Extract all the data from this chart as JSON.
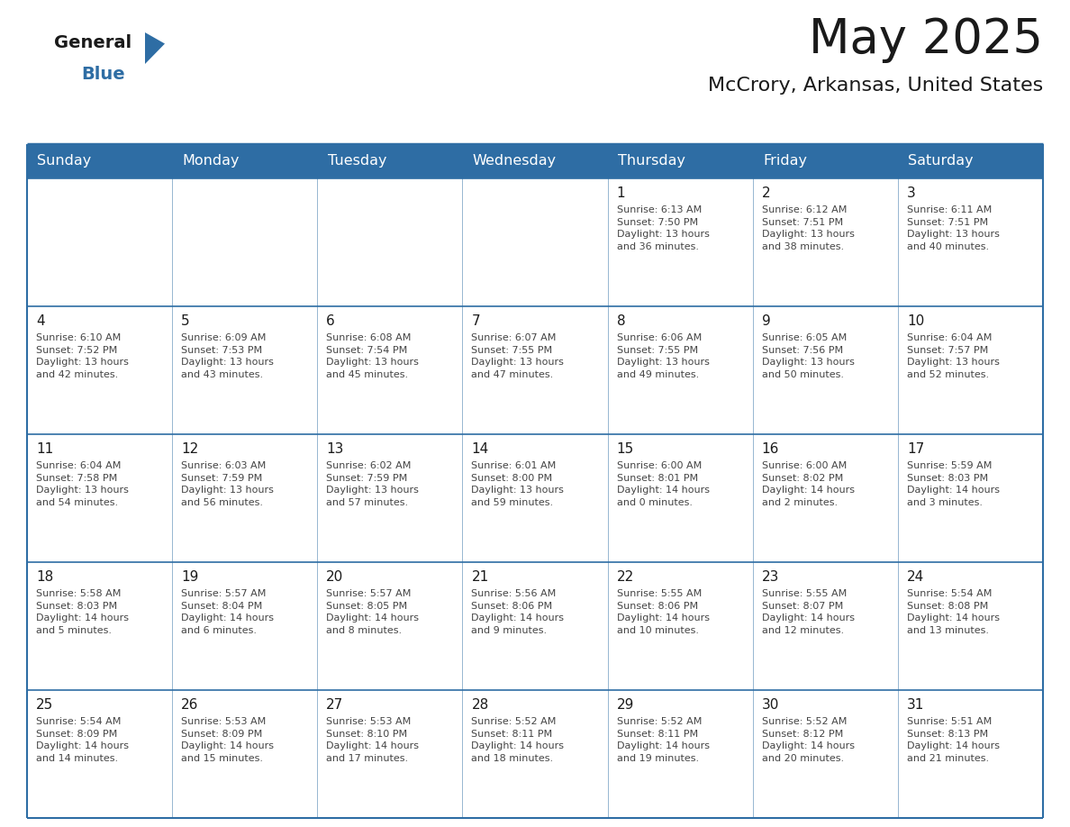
{
  "title": "May 2025",
  "subtitle": "McCrory, Arkansas, United States",
  "header_bg_color": "#2E6DA4",
  "header_text_color": "#FFFFFF",
  "day_names": [
    "Sunday",
    "Monday",
    "Tuesday",
    "Wednesday",
    "Thursday",
    "Friday",
    "Saturday"
  ],
  "title_color": "#1a1a1a",
  "subtitle_color": "#1a1a1a",
  "cell_text_color": "#444444",
  "day_num_color": "#1a1a1a",
  "line_color": "#2E6DA4",
  "logo_black_color": "#1a1a1a",
  "logo_blue_color": "#2E6DA4",
  "weeks": [
    [
      {
        "day": "",
        "text": ""
      },
      {
        "day": "",
        "text": ""
      },
      {
        "day": "",
        "text": ""
      },
      {
        "day": "",
        "text": ""
      },
      {
        "day": "1",
        "text": "Sunrise: 6:13 AM\nSunset: 7:50 PM\nDaylight: 13 hours\nand 36 minutes."
      },
      {
        "day": "2",
        "text": "Sunrise: 6:12 AM\nSunset: 7:51 PM\nDaylight: 13 hours\nand 38 minutes."
      },
      {
        "day": "3",
        "text": "Sunrise: 6:11 AM\nSunset: 7:51 PM\nDaylight: 13 hours\nand 40 minutes."
      }
    ],
    [
      {
        "day": "4",
        "text": "Sunrise: 6:10 AM\nSunset: 7:52 PM\nDaylight: 13 hours\nand 42 minutes."
      },
      {
        "day": "5",
        "text": "Sunrise: 6:09 AM\nSunset: 7:53 PM\nDaylight: 13 hours\nand 43 minutes."
      },
      {
        "day": "6",
        "text": "Sunrise: 6:08 AM\nSunset: 7:54 PM\nDaylight: 13 hours\nand 45 minutes."
      },
      {
        "day": "7",
        "text": "Sunrise: 6:07 AM\nSunset: 7:55 PM\nDaylight: 13 hours\nand 47 minutes."
      },
      {
        "day": "8",
        "text": "Sunrise: 6:06 AM\nSunset: 7:55 PM\nDaylight: 13 hours\nand 49 minutes."
      },
      {
        "day": "9",
        "text": "Sunrise: 6:05 AM\nSunset: 7:56 PM\nDaylight: 13 hours\nand 50 minutes."
      },
      {
        "day": "10",
        "text": "Sunrise: 6:04 AM\nSunset: 7:57 PM\nDaylight: 13 hours\nand 52 minutes."
      }
    ],
    [
      {
        "day": "11",
        "text": "Sunrise: 6:04 AM\nSunset: 7:58 PM\nDaylight: 13 hours\nand 54 minutes."
      },
      {
        "day": "12",
        "text": "Sunrise: 6:03 AM\nSunset: 7:59 PM\nDaylight: 13 hours\nand 56 minutes."
      },
      {
        "day": "13",
        "text": "Sunrise: 6:02 AM\nSunset: 7:59 PM\nDaylight: 13 hours\nand 57 minutes."
      },
      {
        "day": "14",
        "text": "Sunrise: 6:01 AM\nSunset: 8:00 PM\nDaylight: 13 hours\nand 59 minutes."
      },
      {
        "day": "15",
        "text": "Sunrise: 6:00 AM\nSunset: 8:01 PM\nDaylight: 14 hours\nand 0 minutes."
      },
      {
        "day": "16",
        "text": "Sunrise: 6:00 AM\nSunset: 8:02 PM\nDaylight: 14 hours\nand 2 minutes."
      },
      {
        "day": "17",
        "text": "Sunrise: 5:59 AM\nSunset: 8:03 PM\nDaylight: 14 hours\nand 3 minutes."
      }
    ],
    [
      {
        "day": "18",
        "text": "Sunrise: 5:58 AM\nSunset: 8:03 PM\nDaylight: 14 hours\nand 5 minutes."
      },
      {
        "day": "19",
        "text": "Sunrise: 5:57 AM\nSunset: 8:04 PM\nDaylight: 14 hours\nand 6 minutes."
      },
      {
        "day": "20",
        "text": "Sunrise: 5:57 AM\nSunset: 8:05 PM\nDaylight: 14 hours\nand 8 minutes."
      },
      {
        "day": "21",
        "text": "Sunrise: 5:56 AM\nSunset: 8:06 PM\nDaylight: 14 hours\nand 9 minutes."
      },
      {
        "day": "22",
        "text": "Sunrise: 5:55 AM\nSunset: 8:06 PM\nDaylight: 14 hours\nand 10 minutes."
      },
      {
        "day": "23",
        "text": "Sunrise: 5:55 AM\nSunset: 8:07 PM\nDaylight: 14 hours\nand 12 minutes."
      },
      {
        "day": "24",
        "text": "Sunrise: 5:54 AM\nSunset: 8:08 PM\nDaylight: 14 hours\nand 13 minutes."
      }
    ],
    [
      {
        "day": "25",
        "text": "Sunrise: 5:54 AM\nSunset: 8:09 PM\nDaylight: 14 hours\nand 14 minutes."
      },
      {
        "day": "26",
        "text": "Sunrise: 5:53 AM\nSunset: 8:09 PM\nDaylight: 14 hours\nand 15 minutes."
      },
      {
        "day": "27",
        "text": "Sunrise: 5:53 AM\nSunset: 8:10 PM\nDaylight: 14 hours\nand 17 minutes."
      },
      {
        "day": "28",
        "text": "Sunrise: 5:52 AM\nSunset: 8:11 PM\nDaylight: 14 hours\nand 18 minutes."
      },
      {
        "day": "29",
        "text": "Sunrise: 5:52 AM\nSunset: 8:11 PM\nDaylight: 14 hours\nand 19 minutes."
      },
      {
        "day": "30",
        "text": "Sunrise: 5:52 AM\nSunset: 8:12 PM\nDaylight: 14 hours\nand 20 minutes."
      },
      {
        "day": "31",
        "text": "Sunrise: 5:51 AM\nSunset: 8:13 PM\nDaylight: 14 hours\nand 21 minutes."
      }
    ]
  ]
}
